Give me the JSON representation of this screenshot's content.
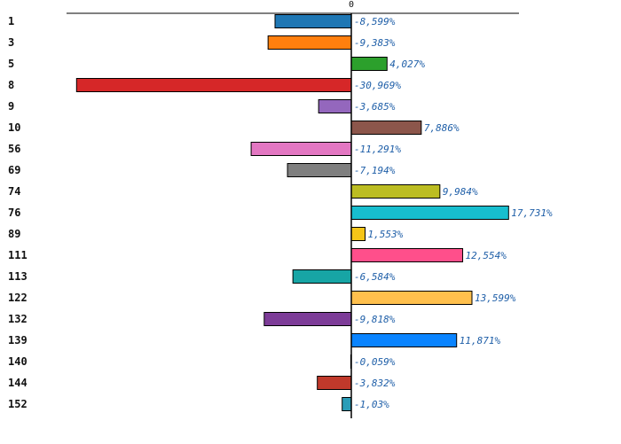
{
  "chart_data": {
    "type": "bar",
    "orientation": "horizontal",
    "zero_label": "0",
    "categories": [
      "1",
      "3",
      "5",
      "8",
      "9",
      "10",
      "56",
      "69",
      "74",
      "76",
      "89",
      "111",
      "113",
      "122",
      "132",
      "139",
      "140",
      "144",
      "152"
    ],
    "values": [
      -8.599,
      -9.383,
      4.027,
      -30.969,
      -3.685,
      7.886,
      -11.291,
      -7.194,
      9.984,
      17.731,
      1.553,
      12.554,
      -6.584,
      13.599,
      -9.818,
      11.871,
      -0.059,
      -3.832,
      -1.03
    ],
    "labels": [
      "-8,599%",
      "-9,383%",
      "4,027%",
      "-30,969%",
      "-3,685%",
      "7,886%",
      "-11,291%",
      "-7,194%",
      "9,984%",
      "17,731%",
      "1,553%",
      "12,554%",
      "-6,584%",
      "13,599%",
      "-9,818%",
      "11,871%",
      "-0,059%",
      "-3,832%",
      "-1,03%"
    ],
    "colors": [
      "#1f77b4",
      "#ff7f0e",
      "#2ca02c",
      "#d62728",
      "#9467bd",
      "#8c564b",
      "#e377c2",
      "#7f7f7f",
      "#bcbd22",
      "#17becf",
      "#f5c518",
      "#ff4f8b",
      "#17a5a5",
      "#ffc04d",
      "#7d3c98",
      "#0a84ff",
      "#ffffff",
      "#c0392b",
      "#2a9db8"
    ],
    "xlim": [
      -31.5,
      18.5
    ],
    "title": "",
    "xlabel": "",
    "ylabel": ""
  }
}
